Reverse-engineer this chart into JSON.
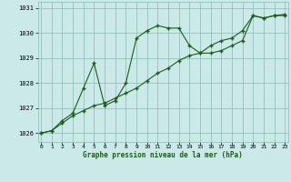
{
  "line1_x": [
    0,
    1,
    2,
    3,
    4,
    5,
    6,
    7,
    8,
    9,
    10,
    11,
    12,
    13,
    14,
    15,
    16,
    17,
    18,
    19,
    20,
    21,
    22,
    23
  ],
  "line1_y": [
    1026.0,
    1026.1,
    1026.5,
    1026.8,
    1027.8,
    1028.8,
    1027.1,
    1027.3,
    1028.0,
    1029.8,
    1030.1,
    1030.3,
    1030.2,
    1030.2,
    1029.5,
    1029.2,
    1029.2,
    1029.3,
    1029.5,
    1029.7,
    1030.7,
    1030.6,
    1030.7,
    1030.7
  ],
  "line2_x": [
    0,
    1,
    2,
    3,
    4,
    5,
    6,
    7,
    8,
    9,
    10,
    11,
    12,
    13,
    14,
    15,
    16,
    17,
    18,
    19,
    20,
    21,
    22,
    23
  ],
  "line2_y": [
    1026.0,
    1026.1,
    1026.4,
    1026.7,
    1026.9,
    1027.1,
    1027.2,
    1027.4,
    1027.6,
    1027.8,
    1028.1,
    1028.4,
    1028.6,
    1028.9,
    1029.1,
    1029.2,
    1029.5,
    1029.7,
    1029.8,
    1030.1,
    1030.7,
    1030.6,
    1030.7,
    1030.75
  ],
  "line_color": "#1a5c1a",
  "bg_color": "#cce9e9",
  "grid_color": "#88bbaa",
  "xlabel": "Graphe pression niveau de la mer (hPa)",
  "xlim": [
    -0.3,
    23.3
  ],
  "ylim": [
    1025.65,
    1031.25
  ],
  "yticks": [
    1026,
    1027,
    1028,
    1029,
    1030,
    1031
  ],
  "xticks": [
    0,
    1,
    2,
    3,
    4,
    5,
    6,
    7,
    8,
    9,
    10,
    11,
    12,
    13,
    14,
    15,
    16,
    17,
    18,
    19,
    20,
    21,
    22,
    23
  ]
}
